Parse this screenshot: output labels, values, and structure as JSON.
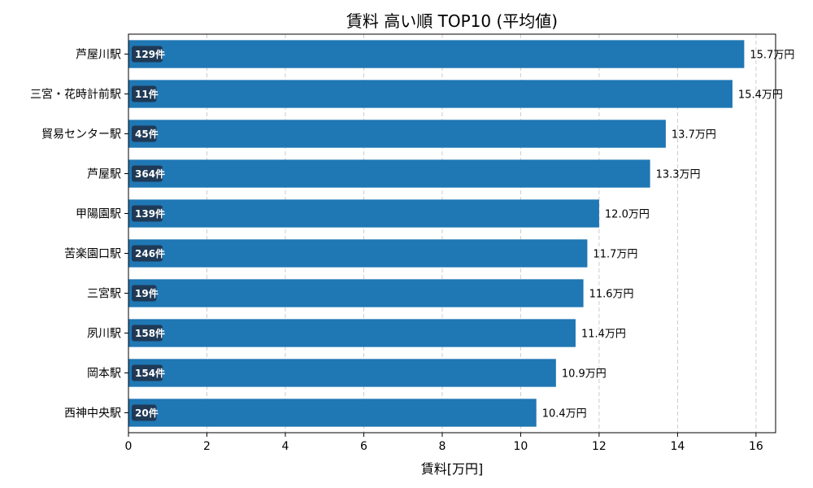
{
  "chart_data": {
    "type": "bar",
    "orientation": "horizontal",
    "title": "賃料 高い順 TOP10 (平均値)",
    "xlabel": "賃料[万円]",
    "ylabel": "",
    "xlim": [
      0,
      16.5
    ],
    "xticks": [
      0,
      2,
      4,
      6,
      8,
      10,
      12,
      14,
      16
    ],
    "grid": "vertical dashed",
    "bar_color": "#1f77b4",
    "badge_color": "#1f3a56",
    "value_suffix": "万円",
    "categories": [
      "芦屋川駅",
      "三宮・花時計前駅",
      "貿易センター駅",
      "芦屋駅",
      "甲陽園駅",
      "苦楽園口駅",
      "三宮駅",
      "夙川駅",
      "岡本駅",
      "西神中央駅"
    ],
    "values": [
      15.7,
      15.4,
      13.7,
      13.3,
      12.0,
      11.7,
      11.6,
      11.4,
      10.9,
      10.4
    ],
    "counts": [
      "129件",
      "11件",
      "45件",
      "364件",
      "139件",
      "246件",
      "19件",
      "158件",
      "154件",
      "20件"
    ]
  }
}
